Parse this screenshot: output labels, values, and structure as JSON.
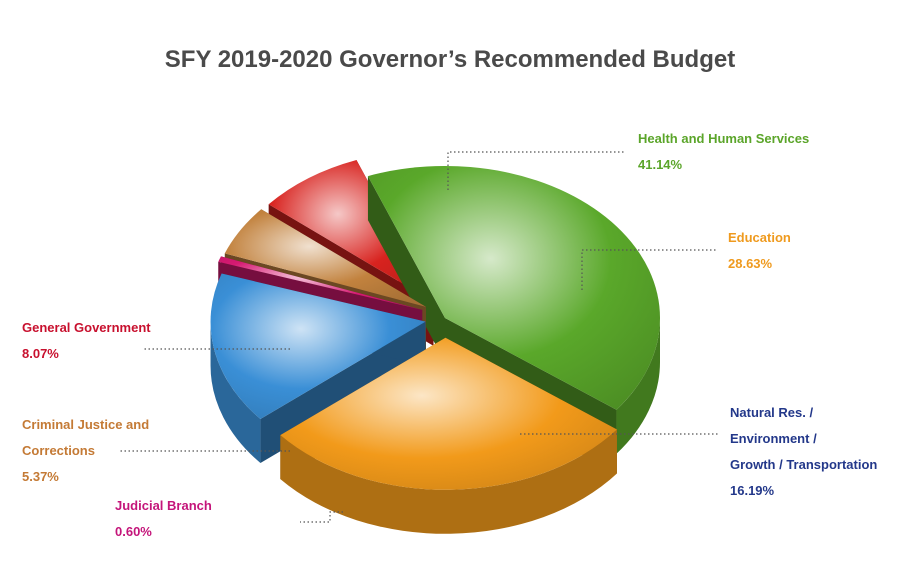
{
  "title": "SFY 2019-2020 Governor’s Recommended Budget",
  "chart_data": {
    "type": "pie",
    "title": "SFY 2019-2020 Governor’s Recommended Budget",
    "slices": [
      {
        "label": "Health and Human Services",
        "value": 41.14,
        "value_label": "41.14%",
        "color": "#5aa82a"
      },
      {
        "label": "Education",
        "value": 28.63,
        "value_label": "28.63%",
        "color": "#f29a1a"
      },
      {
        "label": "Natural Res. / Environment / Growth / Transportation",
        "label_lines": [
          "Natural Res. /",
          "Environment /",
          "Growth / Transportation"
        ],
        "value": 16.19,
        "value_label": "16.19%",
        "color": "#3a8fd6"
      },
      {
        "label": "Judicial Branch",
        "value": 0.6,
        "value_label": "0.60%",
        "color": "#d61a72"
      },
      {
        "label": "Criminal Justice and Corrections",
        "label_lines": [
          "Criminal Justice and",
          "Corrections"
        ],
        "value": 5.37,
        "value_label": "5.37%",
        "color": "#c2823e"
      },
      {
        "label": "General Government",
        "value": 8.07,
        "value_label": "8.07%",
        "color": "#d8231f"
      }
    ],
    "legend": "callout labels"
  }
}
